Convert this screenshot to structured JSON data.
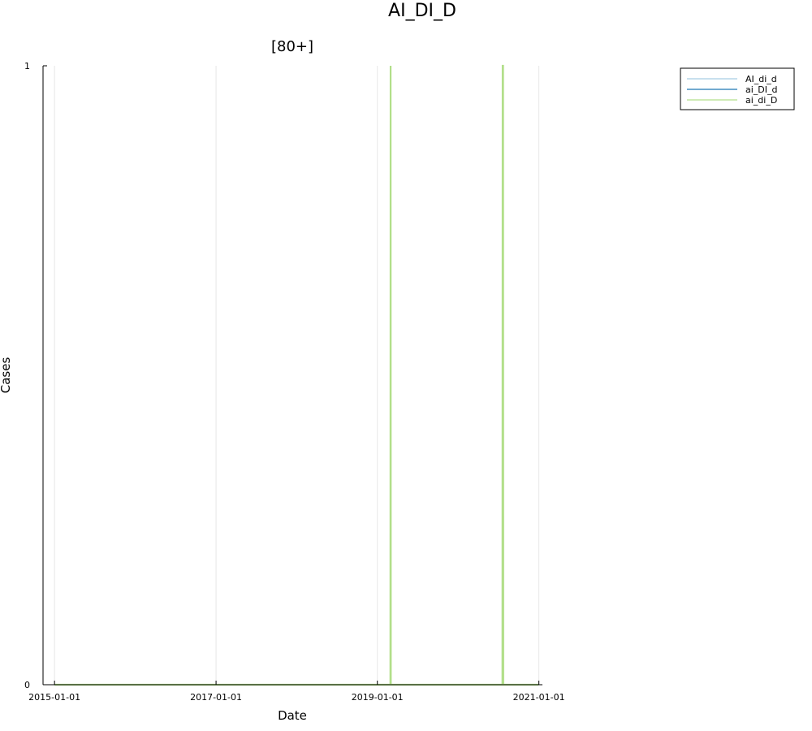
{
  "suptitle": "AI_DI_D",
  "chart_data": {
    "type": "line",
    "title": "[80+]",
    "xlabel": "Date",
    "ylabel": "Cases",
    "xlim": [
      "2014-11-10",
      "2021-01-17"
    ],
    "ylim": [
      0,
      1
    ],
    "xticks": [
      "2015-01-01",
      "2017-01-01",
      "2019-01-01",
      "2021-01-01"
    ],
    "yticks": [
      0,
      1
    ],
    "grid": true,
    "legend": "top-right, outside plot",
    "series": [
      {
        "name": "AI_di_d",
        "color": "#a6cee3",
        "points": [
          [
            "2015-01-01",
            0
          ],
          [
            "2020-12-31",
            0
          ]
        ]
      },
      {
        "name": "ai_DI_d",
        "color": "#1f78b4",
        "points": [
          [
            "2015-01-01",
            0
          ],
          [
            "2020-12-31",
            0
          ]
        ]
      },
      {
        "name": "ai_di_D",
        "color": "#b2df8a",
        "points": [
          [
            "2015-01-01",
            0
          ],
          [
            "2019-03-01",
            0
          ],
          [
            "2019-03-02",
            1
          ],
          [
            "2019-03-03",
            0
          ],
          [
            "2020-07-20",
            0
          ],
          [
            "2020-07-21",
            1
          ],
          [
            "2020-07-23",
            1
          ],
          [
            "2020-07-24",
            0
          ],
          [
            "2020-12-31",
            0
          ]
        ]
      }
    ]
  }
}
